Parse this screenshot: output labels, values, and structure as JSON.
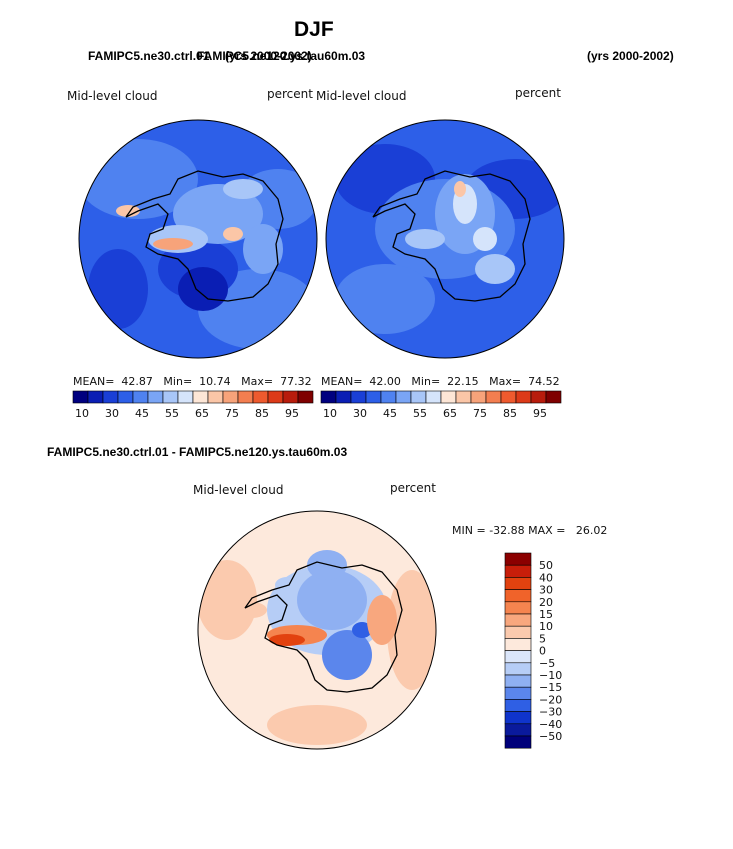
{
  "title": "DJF",
  "panel_left": {
    "case": "FAMIPC5.ne30.ctrl.01",
    "years": "(yrs 2000-2002)",
    "variable": "Mid-level cloud",
    "units": "percent",
    "mean_label": "MEAN=",
    "mean": "42.87",
    "min_label": "Min=",
    "min": "10.74",
    "max_label": "Max=",
    "max": "77.32"
  },
  "panel_right": {
    "case": "FAMIPC5.ne120.ys.tau60m.03",
    "years": "(yrs 2000-2002)",
    "variable": "Mid-level cloud",
    "units": "percent",
    "mean_label": "MEAN=",
    "mean": "42.00",
    "min_label": "Min=",
    "min": "22.15",
    "max_label": "Max=",
    "max": "74.52"
  },
  "colorbar_abs": {
    "labels": [
      "10",
      "30",
      "45",
      "55",
      "65",
      "75",
      "85",
      "95"
    ],
    "colors": [
      "#00007f",
      "#0a1eb4",
      "#1a3fd6",
      "#2d5fe8",
      "#4f82f0",
      "#7aa5f5",
      "#a8c6f8",
      "#d5e4fb",
      "#fde6d6",
      "#fbc6a7",
      "#f7a37a",
      "#f37e50",
      "#ee5a2e",
      "#dc3a18",
      "#b81c0c",
      "#7f0000"
    ]
  },
  "panel_diff": {
    "caption": "FAMIPC5.ne30.ctrl.01 - FAMIPC5.ne120.ys.tau60m.03",
    "variable": "Mid-level cloud",
    "units": "percent",
    "min_label": "MIN =",
    "min": "-32.88",
    "max_label": "MAX =",
    "max": "26.02"
  },
  "colorbar_diff": {
    "labels": [
      "50",
      "40",
      "30",
      "20",
      "15",
      "10",
      "5",
      "0",
      "−5",
      "−10",
      "−15",
      "−20",
      "−30",
      "−40",
      "−50"
    ],
    "colors": [
      "#8b0000",
      "#c81e0a",
      "#e2420f",
      "#f0632a",
      "#f5844f",
      "#f8a77e",
      "#fbcaae",
      "#fde9dc",
      "#dbe6fa",
      "#b6cdf6",
      "#8fb0f2",
      "#5b86ec",
      "#2f5fe4",
      "#0f34cc",
      "#0a1a9c",
      "#00007a"
    ]
  }
}
